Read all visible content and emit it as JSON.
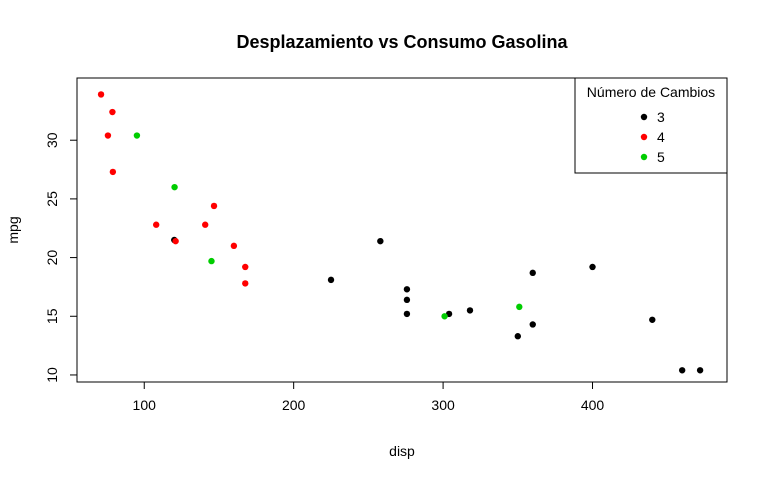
{
  "chart_data": {
    "type": "scatter",
    "title": "Desplazamiento vs Consumo Gasolina",
    "xlabel": "disp",
    "ylabel": "mpg",
    "xlim": [
      55,
      490
    ],
    "ylim": [
      9.4,
      35.3
    ],
    "x_ticks": [
      100,
      200,
      300,
      400
    ],
    "y_ticks": [
      10,
      15,
      20,
      25,
      30
    ],
    "grid": false,
    "legend": {
      "title": "Número de Cambios",
      "placement": "top-right",
      "entries": [
        {
          "label": "3",
          "color": "#000000"
        },
        {
          "label": "4",
          "color": "#ff0000"
        },
        {
          "label": "5",
          "color": "#00cd00"
        }
      ]
    },
    "series": [
      {
        "name": "3",
        "color": "#000000",
        "points": [
          [
            258,
            21.4
          ],
          [
            360,
            18.7
          ],
          [
            225,
            18.1
          ],
          [
            360,
            14.3
          ],
          [
            275.8,
            16.4
          ],
          [
            275.8,
            17.3
          ],
          [
            275.8,
            15.2
          ],
          [
            472,
            10.4
          ],
          [
            460,
            10.4
          ],
          [
            440,
            14.7
          ],
          [
            318,
            15.5
          ],
          [
            304,
            15.2
          ],
          [
            350,
            13.3
          ],
          [
            400,
            19.2
          ],
          [
            120.1,
            21.5
          ]
        ]
      },
      {
        "name": "4",
        "color": "#ff0000",
        "points": [
          [
            160,
            21.0
          ],
          [
            108,
            22.8
          ],
          [
            146.7,
            24.4
          ],
          [
            140.8,
            22.8
          ],
          [
            167.6,
            19.2
          ],
          [
            167.6,
            17.8
          ],
          [
            78.7,
            32.4
          ],
          [
            75.7,
            30.4
          ],
          [
            71.1,
            33.9
          ],
          [
            79,
            27.3
          ],
          [
            121,
            21.4
          ]
        ]
      },
      {
        "name": "5",
        "color": "#00cd00",
        "points": [
          [
            120.3,
            26.0
          ],
          [
            95.1,
            30.4
          ],
          [
            351,
            15.8
          ],
          [
            145,
            19.7
          ],
          [
            301,
            15.0
          ]
        ]
      }
    ]
  }
}
